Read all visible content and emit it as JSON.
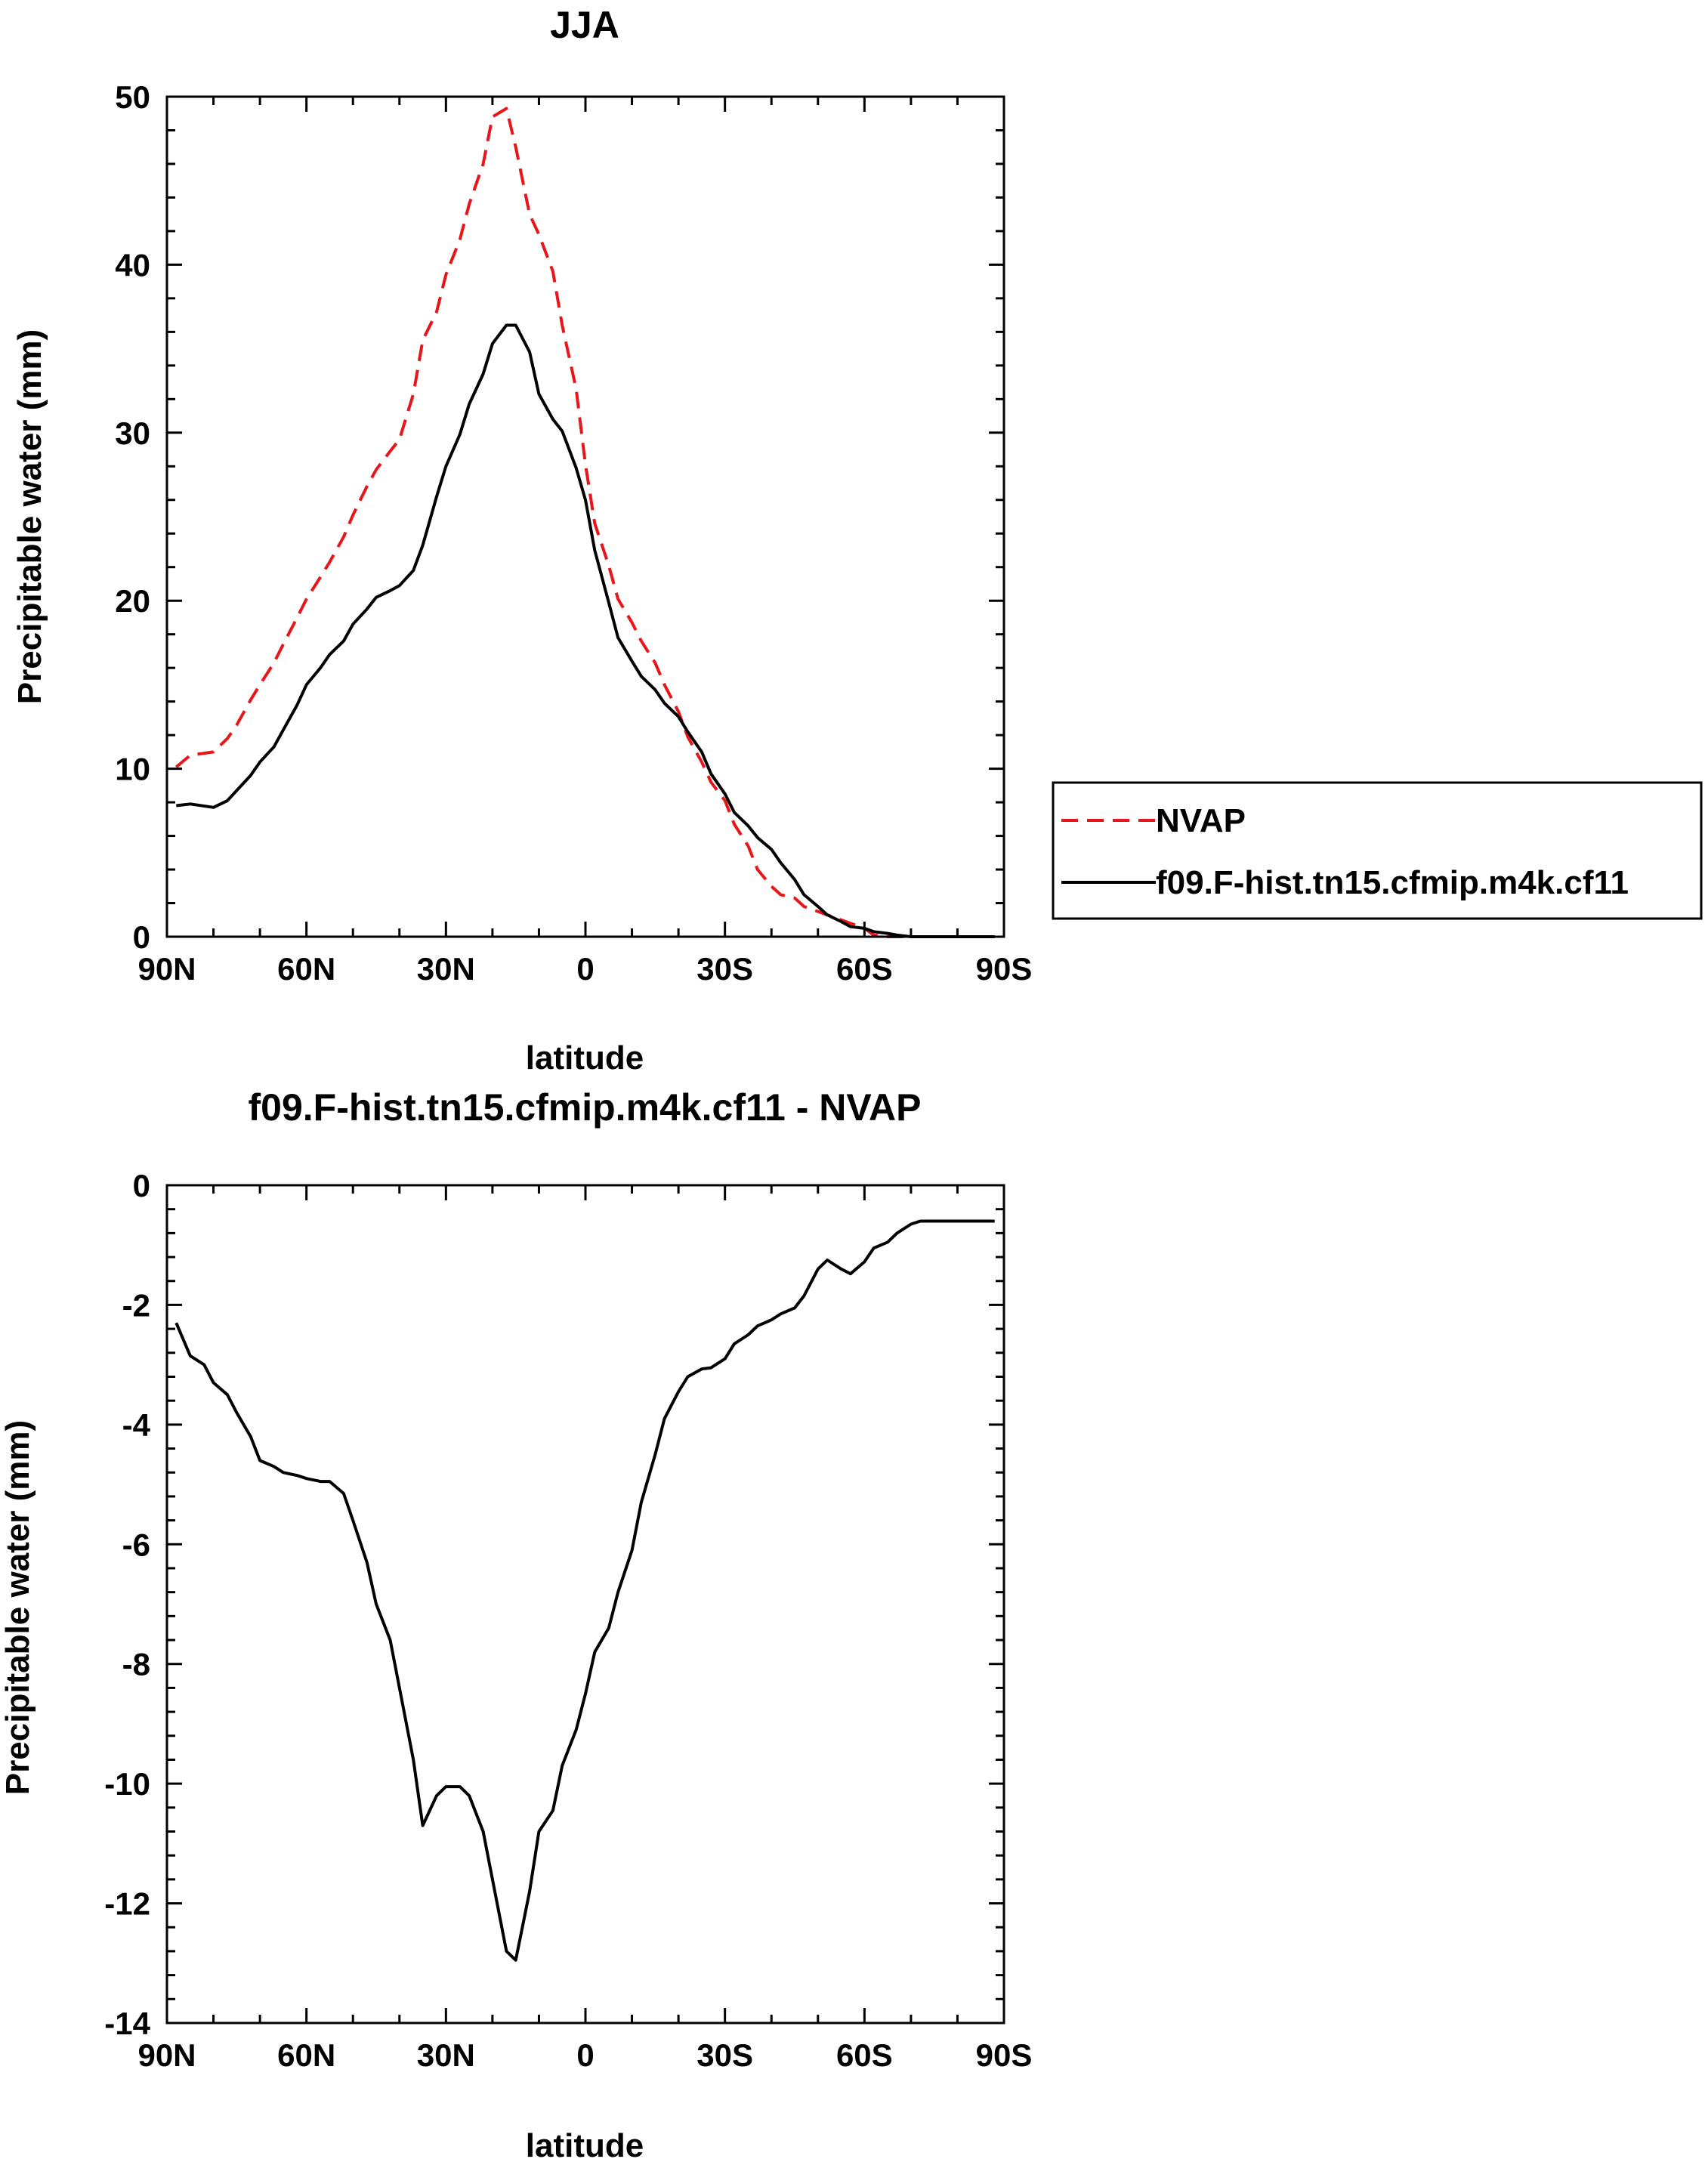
{
  "chart_data": [
    {
      "type": "line",
      "title": "JJA",
      "xlabel": "latitude",
      "ylabel": "Precipitable water (mm)",
      "xlim": [
        90,
        -90
      ],
      "ylim": [
        0,
        50
      ],
      "x_ticks": [
        90,
        60,
        30,
        0,
        -30,
        -60,
        -90
      ],
      "x_tick_labels": [
        "90N",
        "60N",
        "30N",
        "0",
        "30S",
        "60S",
        "90S"
      ],
      "y_ticks": [
        0,
        10,
        20,
        30,
        40,
        50
      ],
      "y_tick_labels": [
        "0",
        "10",
        "20",
        "30",
        "40",
        "50"
      ],
      "grid": false,
      "legend_position": "right-outside",
      "series": [
        {
          "name": "NVAP",
          "color": "#e8161b",
          "dash": "dashed",
          "x": [
            88,
            85,
            80,
            77,
            75,
            72,
            70,
            67,
            65,
            62,
            60,
            57,
            55,
            52,
            50,
            47,
            45,
            42,
            40,
            37,
            35,
            32,
            30,
            27,
            25,
            22,
            20,
            17,
            15,
            12,
            10,
            7,
            5,
            2,
            0,
            -2,
            -5,
            -7,
            -10,
            -12,
            -15,
            -17,
            -20,
            -22,
            -25,
            -27,
            -30,
            -32,
            -35,
            -37,
            -40,
            -42,
            -45,
            -47,
            -50,
            -52,
            -55,
            -57,
            -60,
            -62,
            -65,
            -67,
            -70,
            -72,
            -75,
            -77,
            -80,
            -82,
            -85,
            -88
          ],
          "y": [
            10.1,
            10.8,
            11.0,
            11.8,
            12.6,
            14.1,
            15.0,
            16.3,
            17.4,
            19.0,
            20.1,
            21.4,
            22.3,
            23.8,
            25.1,
            26.8,
            27.8,
            28.9,
            29.6,
            32.3,
            35.5,
            37.2,
            39.4,
            41.5,
            43.6,
            46.0,
            48.8,
            49.3,
            47.0,
            43.0,
            41.8,
            39.6,
            36.4,
            32.6,
            28.1,
            24.6,
            22.1,
            20.1,
            18.7,
            17.6,
            16.3,
            15.0,
            13.4,
            11.9,
            10.4,
            9.2,
            8.1,
            6.7,
            5.4,
            4.0,
            3.0,
            2.5,
            2.3,
            1.8,
            1.5,
            1.3,
            1.0,
            0.8,
            0.5,
            0.1,
            0.0,
            0.0,
            0.0,
            0.0,
            0.0,
            0.0,
            0.0,
            0.0,
            0.0,
            0.0
          ]
        },
        {
          "name": "f09.F-hist.tn15.cfmip.m4k.cf11",
          "color": "#000000",
          "dash": "solid",
          "x": [
            88,
            85,
            80,
            77,
            75,
            72,
            70,
            67,
            65,
            62,
            60,
            57,
            55,
            52,
            50,
            47,
            45,
            42,
            40,
            37,
            35,
            32,
            30,
            27,
            25,
            22,
            20,
            17,
            15,
            12,
            10,
            7,
            5,
            2,
            0,
            -2,
            -5,
            -7,
            -10,
            -12,
            -15,
            -17,
            -20,
            -22,
            -25,
            -27,
            -30,
            -32,
            -35,
            -37,
            -40,
            -42,
            -45,
            -47,
            -50,
            -52,
            -55,
            -57,
            -60,
            -62,
            -65,
            -67,
            -70,
            -72,
            -75,
            -77,
            -80,
            -82,
            -85,
            -88
          ],
          "y": [
            7.8,
            7.9,
            7.7,
            8.1,
            8.7,
            9.6,
            10.4,
            11.3,
            12.3,
            13.8,
            15.0,
            16.0,
            16.8,
            17.6,
            18.6,
            19.5,
            20.2,
            20.6,
            20.9,
            21.8,
            23.3,
            26.2,
            28.0,
            29.9,
            31.7,
            33.5,
            35.3,
            36.4,
            36.4,
            34.8,
            32.3,
            30.8,
            30.1,
            27.9,
            26.0,
            23.0,
            19.9,
            17.8,
            16.4,
            15.5,
            14.7,
            13.9,
            13.1,
            12.2,
            11.0,
            9.7,
            8.5,
            7.4,
            6.6,
            5.9,
            5.2,
            4.4,
            3.4,
            2.5,
            1.8,
            1.3,
            0.9,
            0.6,
            0.5,
            0.3,
            0.2,
            0.1,
            0.0,
            0.0,
            0.0,
            0.0,
            0.0,
            0.0,
            0.0,
            0.0
          ]
        }
      ]
    },
    {
      "type": "line",
      "title": "f09.F-hist.tn15.cfmip.m4k.cf11 - NVAP",
      "xlabel": "latitude",
      "ylabel": "Precipitable water (mm)",
      "xlim": [
        90,
        -90
      ],
      "ylim": [
        -14,
        0
      ],
      "x_ticks": [
        90,
        60,
        30,
        0,
        -30,
        -60,
        -90
      ],
      "x_tick_labels": [
        "90N",
        "60N",
        "30N",
        "0",
        "30S",
        "60S",
        "90S"
      ],
      "y_ticks": [
        0,
        -2,
        -4,
        -6,
        -8,
        -10,
        -12,
        -14
      ],
      "y_tick_labels": [
        "0",
        "-2",
        "-4",
        "-6",
        "-8",
        "-10",
        "-12",
        "-14"
      ],
      "grid": false,
      "series": [
        {
          "color": "#000000",
          "dash": "solid",
          "x": [
            88,
            85,
            82,
            80,
            77,
            75,
            72,
            70,
            67,
            65,
            62,
            60,
            57,
            55,
            52,
            50,
            47,
            45,
            42,
            40,
            37,
            35,
            32,
            30,
            27,
            25,
            22,
            20,
            17,
            15,
            12,
            10,
            7,
            5,
            2,
            0,
            -2,
            -5,
            -7,
            -10,
            -12,
            -15,
            -17,
            -20,
            -22,
            -25,
            -27,
            -30,
            -32,
            -35,
            -37,
            -40,
            -42,
            -45,
            -47,
            -50,
            -52,
            -55,
            -57,
            -60,
            -62,
            -65,
            -67,
            -70,
            -72,
            -75,
            -77,
            -80,
            -82,
            -85,
            -88
          ],
          "y": [
            -2.3,
            -2.85,
            -3.0,
            -3.3,
            -3.5,
            -3.8,
            -4.2,
            -4.6,
            -4.7,
            -4.8,
            -4.85,
            -4.9,
            -4.95,
            -4.95,
            -5.15,
            -5.6,
            -6.3,
            -7.0,
            -7.6,
            -8.4,
            -9.6,
            -10.7,
            -10.2,
            -10.05,
            -10.05,
            -10.2,
            -10.8,
            -11.6,
            -12.8,
            -12.95,
            -11.8,
            -10.8,
            -10.45,
            -9.7,
            -9.1,
            -8.5,
            -7.8,
            -7.4,
            -6.8,
            -6.1,
            -5.3,
            -4.5,
            -3.9,
            -3.45,
            -3.2,
            -3.07,
            -3.05,
            -2.9,
            -2.65,
            -2.5,
            -2.35,
            -2.25,
            -2.15,
            -2.05,
            -1.85,
            -1.4,
            -1.25,
            -1.4,
            -1.48,
            -1.28,
            -1.05,
            -0.95,
            -0.8,
            -0.65,
            -0.6,
            -0.6,
            -0.6,
            -0.6,
            -0.6,
            -0.6,
            -0.6
          ]
        }
      ]
    }
  ]
}
